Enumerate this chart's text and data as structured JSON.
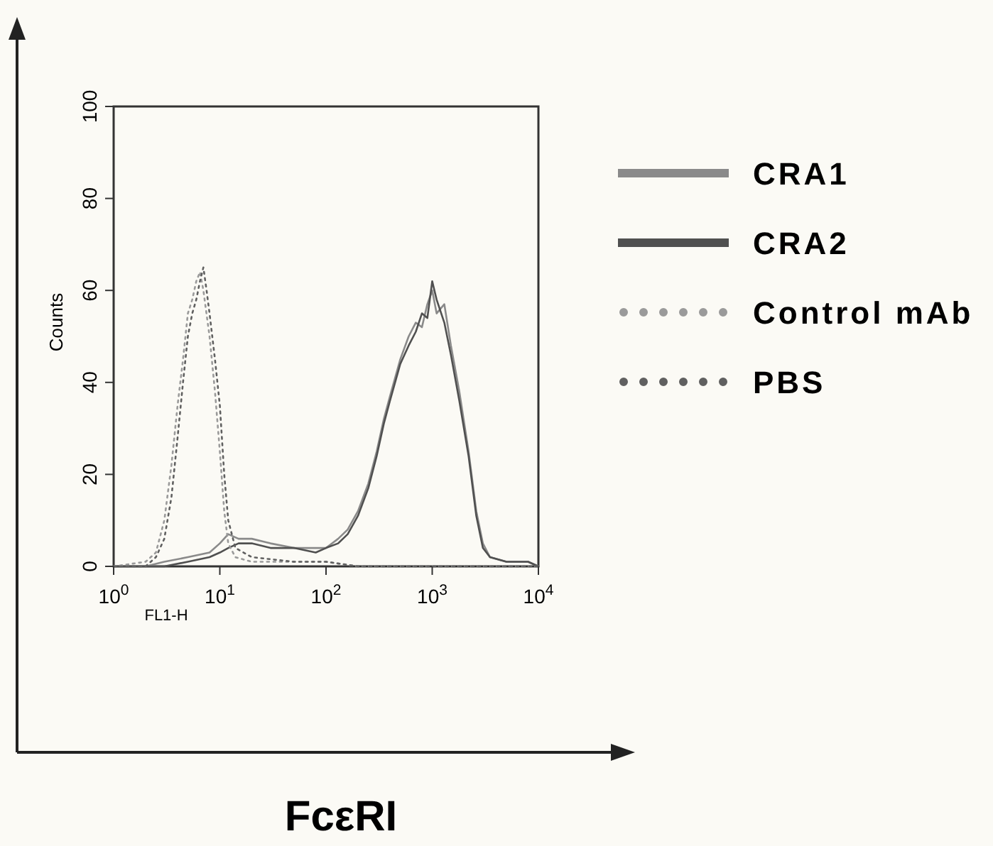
{
  "chart_data": {
    "type": "line",
    "xlabel": "FL1-H",
    "ylabel": "Counts",
    "log": "x",
    "legend": "right",
    "grid": false,
    "marker": "none",
    "xlim": [
      1,
      10000
    ],
    "ylim": [
      0,
      100
    ],
    "xticks": [
      {
        "value": 1,
        "label": "10$^{0}$"
      },
      {
        "value": 10,
        "label": "10$^{1}$"
      },
      {
        "value": 100,
        "label": "10$^{2}$"
      },
      {
        "value": 1000,
        "label": "10$^{3}$"
      },
      {
        "value": 10000,
        "label": "10$^{4}$"
      }
    ],
    "yticks": [
      0,
      20,
      40,
      60,
      80,
      100
    ],
    "annotations": [
      "FcεRI"
    ],
    "series": [
      {
        "name": "CRA1",
        "color": "#8a8a8a",
        "line_style": "solid",
        "x": [
          1,
          2,
          3,
          5,
          8,
          10,
          12,
          15,
          20,
          30,
          50,
          80,
          100,
          130,
          160,
          200,
          250,
          300,
          350,
          400,
          500,
          600,
          700,
          800,
          900,
          1000,
          1100,
          1300,
          1500,
          1800,
          2200,
          2600,
          3000,
          3500,
          5000,
          8000,
          10000
        ],
        "values": [
          0,
          0,
          1,
          2,
          3,
          5,
          7,
          6,
          6,
          5,
          4,
          4,
          4,
          6,
          8,
          12,
          18,
          25,
          32,
          37,
          45,
          50,
          53,
          52,
          57,
          60,
          55,
          57,
          48,
          38,
          25,
          12,
          5,
          2,
          1,
          1,
          0
        ]
      },
      {
        "name": "CRA2",
        "color": "#505050",
        "line_style": "solid",
        "x": [
          1,
          2,
          3,
          5,
          8,
          10,
          12,
          15,
          20,
          30,
          50,
          80,
          100,
          130,
          160,
          200,
          250,
          300,
          350,
          400,
          500,
          600,
          700,
          800,
          900,
          1000,
          1100,
          1300,
          1500,
          1800,
          2200,
          2600,
          3000,
          3500,
          5000,
          8000,
          10000
        ],
        "values": [
          0,
          0,
          0,
          1,
          2,
          3,
          4,
          5,
          5,
          4,
          4,
          3,
          4,
          5,
          7,
          11,
          17,
          24,
          31,
          36,
          44,
          48,
          51,
          55,
          54,
          62,
          58,
          53,
          46,
          36,
          24,
          11,
          4,
          2,
          1,
          1,
          0
        ]
      },
      {
        "name": "Control mAb",
        "color": "#9a9a9a",
        "line_style": "dotted",
        "x": [
          1,
          2,
          2.5,
          3,
          3.5,
          4,
          4.5,
          5,
          5.5,
          6,
          6.5,
          7,
          8,
          9,
          10,
          11,
          12,
          14,
          20,
          50,
          100,
          200,
          10000
        ],
        "values": [
          0,
          1,
          3,
          10,
          22,
          35,
          45,
          55,
          58,
          62,
          64,
          60,
          50,
          38,
          25,
          12,
          5,
          2,
          1,
          1,
          1,
          0,
          0
        ]
      },
      {
        "name": "PBS",
        "color": "#606060",
        "line_style": "dotted",
        "x": [
          1,
          2,
          2.5,
          3,
          3.5,
          4,
          4.5,
          5,
          5.5,
          6,
          6.5,
          7,
          7.5,
          8,
          9,
          10,
          11,
          12,
          14,
          20,
          50,
          100,
          200,
          10000
        ],
        "values": [
          0,
          0,
          2,
          6,
          15,
          28,
          40,
          50,
          55,
          58,
          62,
          65,
          60,
          55,
          45,
          35,
          20,
          10,
          4,
          2,
          1,
          1,
          0,
          0
        ]
      }
    ]
  }
}
